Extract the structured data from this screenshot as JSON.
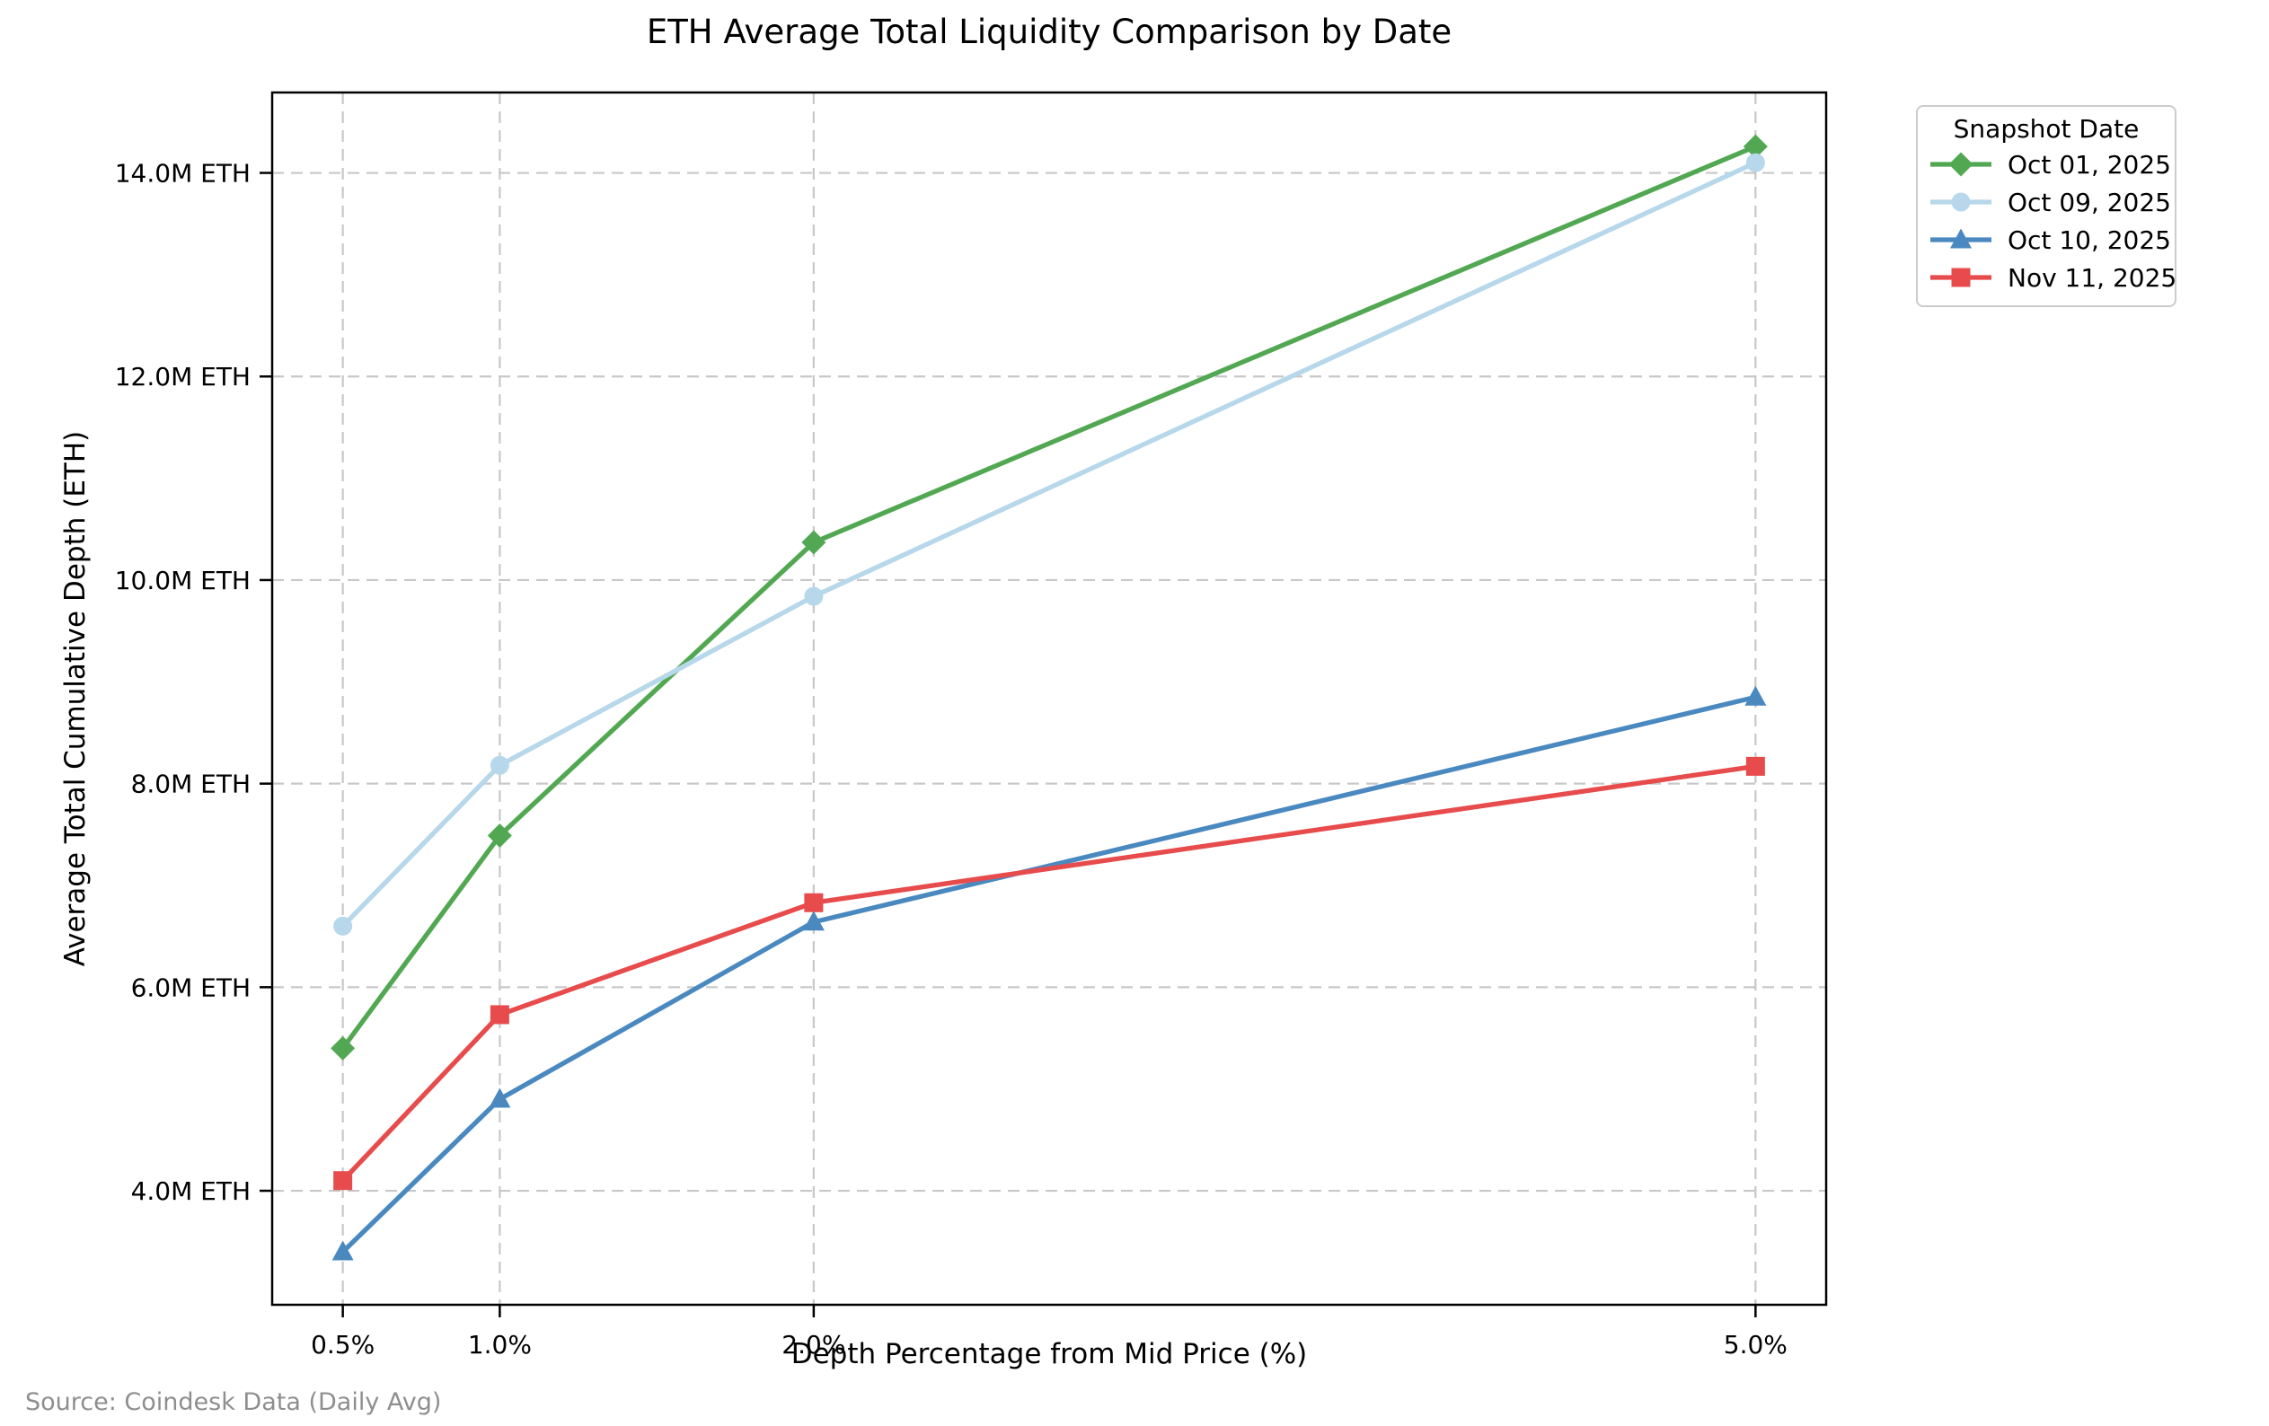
{
  "chart_data": {
    "type": "line",
    "title": "ETH Average Total Liquidity Comparison by Date",
    "xlabel": "Depth Percentage from Mid Price (%)",
    "ylabel": "Average Total Cumulative Depth (ETH)",
    "source": "Source: Coindesk Data (Daily Avg)",
    "legend_title": "Snapshot Date",
    "legend_position": "outside-top-right",
    "grid": true,
    "grid_style": "dashed",
    "x": [
      0.5,
      1.0,
      2.0,
      5.0
    ],
    "x_tick_labels": [
      "0.5%",
      "1.0%",
      "2.0%",
      "5.0%"
    ],
    "y_ticks": [
      4,
      6,
      8,
      10,
      12,
      14
    ],
    "y_tick_labels": [
      "4.0M ETH",
      "6.0M ETH",
      "8.0M ETH",
      "10.0M ETH",
      "12.0M ETH",
      "14.0M ETH"
    ],
    "y_unit": "M ETH",
    "xlim": [
      0.275,
      5.225
    ],
    "ylim": [
      2.88,
      14.79
    ],
    "series": [
      {
        "name": "Oct 01, 2025",
        "marker": "diamond",
        "color": "#52a852",
        "values": [
          5.4,
          7.49,
          10.37,
          14.26
        ]
      },
      {
        "name": "Oct 09, 2025",
        "marker": "circle",
        "color": "#b7d7ea",
        "values": [
          6.6,
          8.18,
          9.84,
          14.1
        ]
      },
      {
        "name": "Oct 10, 2025",
        "marker": "triangle",
        "color": "#4a89c0",
        "values": [
          3.4,
          4.9,
          6.64,
          8.85
        ]
      },
      {
        "name": "Nov 11, 2025",
        "marker": "square",
        "color": "#e74b4c",
        "values": [
          4.1,
          5.73,
          6.83,
          8.17
        ]
      }
    ],
    "colors": {
      "grid": "#c8c8c8",
      "spine": "#000000",
      "source_text": "#8e8e8e",
      "legend_border": "#cccccc"
    }
  }
}
